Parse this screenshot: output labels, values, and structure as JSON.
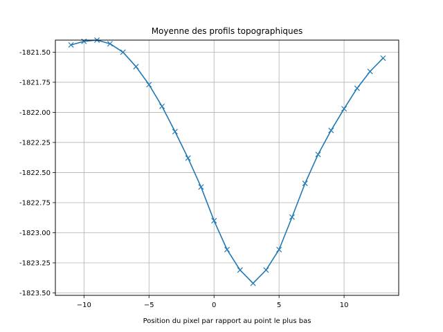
{
  "chart_data": {
    "type": "line",
    "title": "Moyenne des profils topographiques",
    "xlabel": "Position du pixel par rapport au point le plus bas",
    "ylabel": "",
    "xlim": [
      -12.2,
      14.2
    ],
    "ylim": [
      -1823.52,
      -1821.4
    ],
    "grid": true,
    "x_ticks": [
      -10,
      -5,
      0,
      5,
      10
    ],
    "x_tick_labels": [
      "−10",
      "−5",
      "0",
      "5",
      "10"
    ],
    "y_ticks": [
      -1821.5,
      -1821.75,
      -1822.0,
      -1822.25,
      -1822.5,
      -1822.75,
      -1823.0,
      -1823.25,
      -1823.5
    ],
    "y_tick_labels": [
      "-1821.50",
      "-1821.75",
      "-1822.00",
      "-1822.25",
      "-1822.50",
      "-1822.75",
      "-1823.00",
      "-1823.25",
      "-1823.50"
    ],
    "series": [
      {
        "color": "#1f77b4",
        "marker": "x",
        "x": [
          -11,
          -10,
          -9,
          -8,
          -7,
          -6,
          -5,
          -4,
          -3,
          -2,
          -1,
          0,
          1,
          2,
          3,
          4,
          5,
          6,
          7,
          8,
          9,
          10,
          11,
          12,
          13
        ],
        "y": [
          -1821.44,
          -1821.41,
          -1821.4,
          -1821.43,
          -1821.5,
          -1821.62,
          -1821.77,
          -1821.95,
          -1822.16,
          -1822.38,
          -1822.62,
          -1822.9,
          -1823.14,
          -1823.31,
          -1823.42,
          -1823.31,
          -1823.14,
          -1822.87,
          -1822.59,
          -1822.35,
          -1822.15,
          -1821.97,
          -1821.8,
          -1821.66,
          -1821.55
        ]
      }
    ]
  }
}
